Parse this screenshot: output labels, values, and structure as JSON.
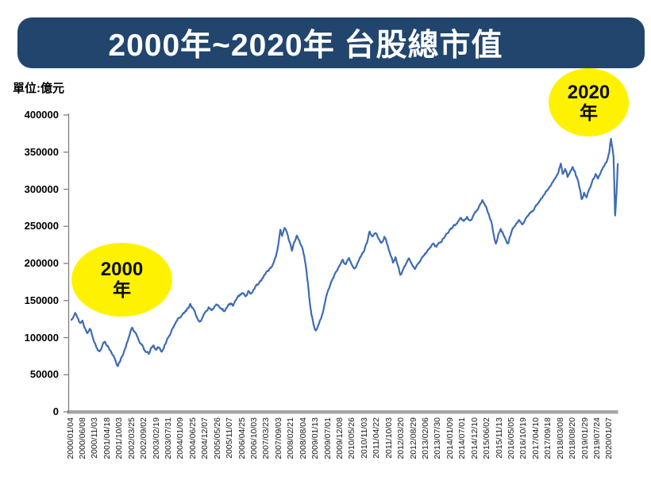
{
  "banner": {
    "title": "2000年~2020年 台股總市值",
    "bg_color": "#21456D"
  },
  "chart_data": {
    "type": "line",
    "title": "2000年~2020年 台股總市值",
    "unit_label": "單位:億元",
    "xlabel": "",
    "ylabel": "億元",
    "ylim": [
      0,
      400000
    ],
    "grid": false,
    "legend": "none",
    "y_ticks": [
      0,
      50000,
      100000,
      150000,
      200000,
      250000,
      300000,
      350000,
      400000
    ],
    "x_tick_labels": [
      "2000/01/04",
      "2000/06/08",
      "2000/11/03",
      "2001/04/18",
      "2001/10/03",
      "2002/03/25",
      "2002/09/02",
      "2003/02/19",
      "2003/07/31",
      "2004/01/09",
      "2004/06/25",
      "2004/12/07",
      "2005/05/26",
      "2005/11/07",
      "2006/04/25",
      "2006/10/03",
      "2007/03/23",
      "2007/09/03",
      "2008/02/21",
      "2008/08/04",
      "2009/01/13",
      "2009/07/01",
      "2009/12/08",
      "2010/05/26",
      "2010/11/03",
      "2011/04/22",
      "2011/10/03",
      "2012/03/20",
      "2012/08/29",
      "2013/02/06",
      "2013/07/30",
      "2014/01/09",
      "2014/07/01",
      "2014/12/10",
      "2015/06/02",
      "2015/11/13",
      "2016/05/05",
      "2016/10/19",
      "2017/04/10",
      "2017/09/18",
      "2018/03/08",
      "2018/08/20",
      "2019/01/29",
      "2019/07/24",
      "2020/01/07"
    ],
    "series": [
      {
        "name": "台股總市值",
        "color": "#3E6CB2",
        "points": [
          [
            0,
            124000
          ],
          [
            0.3,
            133500
          ],
          [
            0.5,
            127000
          ],
          [
            0.7,
            120000
          ],
          [
            0.9,
            123000
          ],
          [
            1.1,
            113000
          ],
          [
            1.3,
            106000
          ],
          [
            1.5,
            112000
          ],
          [
            1.7,
            103000
          ],
          [
            1.9,
            93000
          ],
          [
            2.1,
            85000
          ],
          [
            2.3,
            81500
          ],
          [
            2.5,
            88000
          ],
          [
            2.7,
            94500
          ],
          [
            2.9,
            89000
          ],
          [
            3.1,
            84000
          ],
          [
            3.3,
            79000
          ],
          [
            3.55,
            71000
          ],
          [
            3.78,
            61500
          ],
          [
            3.95,
            67000
          ],
          [
            4.15,
            75000
          ],
          [
            4.4,
            86000
          ],
          [
            4.65,
            99000
          ],
          [
            4.95,
            113500
          ],
          [
            5.15,
            108000
          ],
          [
            5.4,
            101000
          ],
          [
            5.65,
            92000
          ],
          [
            5.9,
            85000
          ],
          [
            6.1,
            80500
          ],
          [
            6.3,
            78000
          ],
          [
            6.5,
            86000
          ],
          [
            6.7,
            89500
          ],
          [
            6.9,
            83500
          ],
          [
            7.1,
            87000
          ],
          [
            7.3,
            82000
          ],
          [
            7.5,
            84500
          ],
          [
            7.7,
            92000
          ],
          [
            7.95,
            102000
          ],
          [
            8.2,
            111000
          ],
          [
            8.5,
            120000
          ],
          [
            8.75,
            126500
          ],
          [
            9,
            130000
          ],
          [
            9.25,
            134000
          ],
          [
            9.5,
            140000
          ],
          [
            9.7,
            145500
          ],
          [
            9.95,
            139000
          ],
          [
            10.2,
            128500
          ],
          [
            10.45,
            121500
          ],
          [
            10.7,
            127500
          ],
          [
            10.95,
            135000
          ],
          [
            11.2,
            141000
          ],
          [
            11.45,
            137000
          ],
          [
            11.7,
            142500
          ],
          [
            11.95,
            144000
          ],
          [
            12.2,
            139500
          ],
          [
            12.45,
            135500
          ],
          [
            12.7,
            141000
          ],
          [
            12.95,
            146000
          ],
          [
            13.2,
            143000
          ],
          [
            13.45,
            151000
          ],
          [
            13.7,
            156000
          ],
          [
            13.95,
            160000
          ],
          [
            14.2,
            155500
          ],
          [
            14.45,
            163000
          ],
          [
            14.7,
            160000
          ],
          [
            14.95,
            166000
          ],
          [
            15.2,
            171000
          ],
          [
            15.45,
            177000
          ],
          [
            15.7,
            183000
          ],
          [
            15.95,
            189000
          ],
          [
            16.2,
            193500
          ],
          [
            16.45,
            199000
          ],
          [
            16.7,
            210000
          ],
          [
            16.9,
            227000
          ],
          [
            17.05,
            245500
          ],
          [
            17.2,
            237000
          ],
          [
            17.4,
            248000
          ],
          [
            17.6,
            241000
          ],
          [
            17.8,
            229000
          ],
          [
            18,
            217000
          ],
          [
            18.2,
            229000
          ],
          [
            18.4,
            237500
          ],
          [
            18.6,
            231000
          ],
          [
            18.8,
            223000
          ],
          [
            19,
            210000
          ],
          [
            19.2,
            188000
          ],
          [
            19.4,
            156000
          ],
          [
            19.6,
            130000
          ],
          [
            19.8,
            116000
          ],
          [
            19.95,
            109500
          ],
          [
            20.15,
            117000
          ],
          [
            20.4,
            127000
          ],
          [
            20.65,
            144000
          ],
          [
            20.9,
            161000
          ],
          [
            21.15,
            172000
          ],
          [
            21.4,
            181000
          ],
          [
            21.65,
            189500
          ],
          [
            21.9,
            197000
          ],
          [
            22.15,
            205000
          ],
          [
            22.4,
            199000
          ],
          [
            22.65,
            207500
          ],
          [
            22.9,
            198000
          ],
          [
            23.15,
            193500
          ],
          [
            23.4,
            202000
          ],
          [
            23.65,
            210000
          ],
          [
            23.9,
            217000
          ],
          [
            24.15,
            229000
          ],
          [
            24.35,
            243000
          ],
          [
            24.55,
            236500
          ],
          [
            24.8,
            241000
          ],
          [
            25.05,
            234000
          ],
          [
            25.3,
            228000
          ],
          [
            25.55,
            236000
          ],
          [
            25.8,
            225000
          ],
          [
            26.05,
            211000
          ],
          [
            26.25,
            201000
          ],
          [
            26.45,
            208500
          ],
          [
            26.65,
            197000
          ],
          [
            26.85,
            184500
          ],
          [
            27.05,
            191000
          ],
          [
            27.3,
            199500
          ],
          [
            27.55,
            207000
          ],
          [
            27.8,
            198500
          ],
          [
            28.05,
            192500
          ],
          [
            28.3,
            200000
          ],
          [
            28.55,
            206000
          ],
          [
            28.8,
            211500
          ],
          [
            29.05,
            217000
          ],
          [
            29.3,
            222000
          ],
          [
            29.55,
            227000
          ],
          [
            29.8,
            222500
          ],
          [
            30.05,
            228000
          ],
          [
            30.3,
            233000
          ],
          [
            30.55,
            238000
          ],
          [
            30.8,
            242500
          ],
          [
            31.05,
            247000
          ],
          [
            31.3,
            251500
          ],
          [
            31.55,
            256500
          ],
          [
            31.8,
            261500
          ],
          [
            32.05,
            257500
          ],
          [
            32.3,
            263000
          ],
          [
            32.55,
            258000
          ],
          [
            32.8,
            264500
          ],
          [
            33.05,
            270000
          ],
          [
            33.3,
            277500
          ],
          [
            33.55,
            285500
          ],
          [
            33.75,
            279500
          ],
          [
            33.95,
            271500
          ],
          [
            34.15,
            261500
          ],
          [
            34.35,
            251000
          ],
          [
            34.5,
            237000
          ],
          [
            34.65,
            226500
          ],
          [
            34.85,
            239000
          ],
          [
            35.05,
            246500
          ],
          [
            35.25,
            239500
          ],
          [
            35.45,
            232000
          ],
          [
            35.65,
            227000
          ],
          [
            35.85,
            238500
          ],
          [
            36.05,
            247500
          ],
          [
            36.3,
            253500
          ],
          [
            36.55,
            258500
          ],
          [
            36.8,
            252500
          ],
          [
            37.05,
            259500
          ],
          [
            37.3,
            264500
          ],
          [
            37.55,
            269500
          ],
          [
            37.8,
            274500
          ],
          [
            38.05,
            280500
          ],
          [
            38.3,
            286500
          ],
          [
            38.55,
            292000
          ],
          [
            38.8,
            297500
          ],
          [
            39.05,
            303500
          ],
          [
            39.3,
            309500
          ],
          [
            39.55,
            316000
          ],
          [
            39.8,
            326000
          ],
          [
            39.95,
            334500
          ],
          [
            40.1,
            320500
          ],
          [
            40.3,
            327500
          ],
          [
            40.5,
            316500
          ],
          [
            40.7,
            323500
          ],
          [
            40.9,
            330000
          ],
          [
            41.1,
            324000
          ],
          [
            41.3,
            314500
          ],
          [
            41.5,
            300500
          ],
          [
            41.65,
            286500
          ],
          [
            41.85,
            295500
          ],
          [
            42.05,
            289000
          ],
          [
            42.3,
            301000
          ],
          [
            42.55,
            312500
          ],
          [
            42.8,
            320500
          ],
          [
            43,
            314500
          ],
          [
            43.2,
            322500
          ],
          [
            43.45,
            330500
          ],
          [
            43.7,
            337500
          ],
          [
            43.9,
            349500
          ],
          [
            44.05,
            368000
          ],
          [
            44.15,
            357000
          ],
          [
            44.25,
            345000
          ],
          [
            44.38,
            264500
          ],
          [
            44.48,
            290000
          ],
          [
            44.6,
            334000
          ]
        ]
      }
    ],
    "annotations": [
      {
        "id": "start-year",
        "line1": "2000",
        "line2": "年",
        "circle_color": "#FFF200"
      },
      {
        "id": "end-year",
        "line1": "2020",
        "line2": "年",
        "circle_color": "#FFF200"
      }
    ],
    "render_hints": {
      "axis_color": "#808080",
      "baseline_color": "#A6A6A6",
      "noise_amplitude": 3800,
      "noise_seed": 1337,
      "legend_position": "none"
    }
  }
}
